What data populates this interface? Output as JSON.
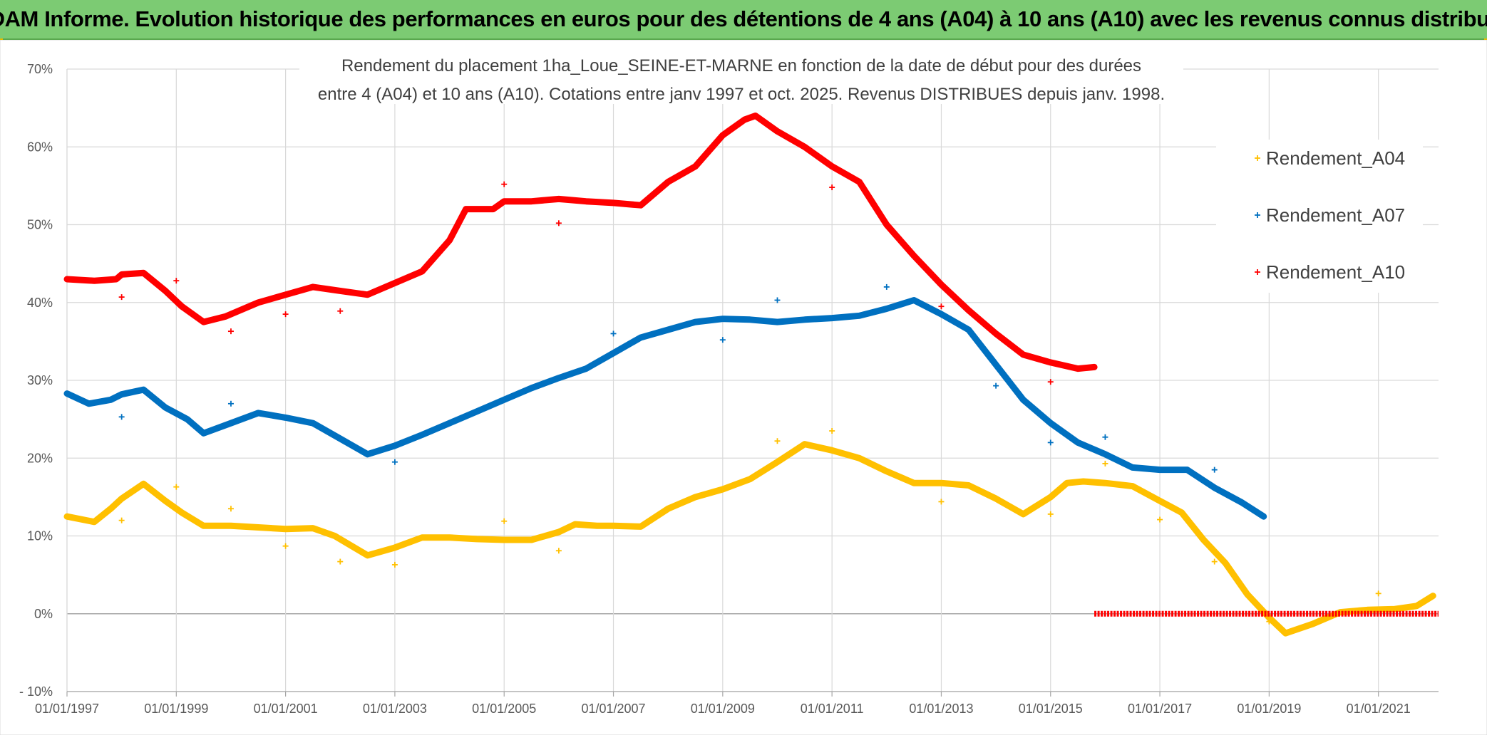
{
  "header": {
    "title": "ADAM Informe. Evolution historique des performances en euros pour des détentions de 4 ans (A04) à 10 ans (A10) avec les revenus connus distribués"
  },
  "chart_data": {
    "type": "line",
    "title_line1": "Rendement du placement 1ha_Loue_SEINE-ET-MARNE en fonction de la date de début pour des durées",
    "title_line2": "entre 4 (A04) et 10 ans (A10). Cotations entre janv 1997 et oct. 2025. Revenus DISTRIBUES depuis janv. 1998.",
    "x_range": [
      1997.0,
      2022.1
    ],
    "ylim": [
      -10,
      70
    ],
    "y_ticks": [
      "70%",
      "60%",
      "50%",
      "40%",
      "30%",
      "20%",
      "10%",
      "0%",
      "- 10%"
    ],
    "y_tick_values": [
      70,
      60,
      50,
      40,
      30,
      20,
      10,
      0,
      -10
    ],
    "x_ticks": [
      "01/01/1997",
      "01/01/1999",
      "01/01/2001",
      "01/01/2003",
      "01/01/2005",
      "01/01/2007",
      "01/01/2009",
      "01/01/2011",
      "01/01/2013",
      "01/01/2015",
      "01/01/2017",
      "01/01/2019",
      "01/01/2021"
    ],
    "x_tick_values": [
      1997,
      1999,
      2001,
      2003,
      2005,
      2007,
      2009,
      2011,
      2013,
      2015,
      2017,
      2019,
      2021
    ],
    "legend_position": "right",
    "series": [
      {
        "name": "Rendement_A04",
        "color": "#ffc000",
        "points": [
          [
            1997.0,
            12.5
          ],
          [
            1997.5,
            11.8
          ],
          [
            1997.8,
            13.5
          ],
          [
            1998.0,
            14.8
          ],
          [
            1998.4,
            16.7
          ],
          [
            1998.8,
            14.5
          ],
          [
            1999.1,
            13.0
          ],
          [
            1999.5,
            11.3
          ],
          [
            2000.0,
            11.3
          ],
          [
            2000.5,
            11.1
          ],
          [
            2001.0,
            10.9
          ],
          [
            2001.5,
            11.0
          ],
          [
            2001.9,
            10.0
          ],
          [
            2002.5,
            7.5
          ],
          [
            2003.0,
            8.5
          ],
          [
            2003.5,
            9.8
          ],
          [
            2004.0,
            9.8
          ],
          [
            2004.5,
            9.6
          ],
          [
            2005.0,
            9.5
          ],
          [
            2005.5,
            9.5
          ],
          [
            2006.0,
            10.5
          ],
          [
            2006.3,
            11.5
          ],
          [
            2006.7,
            11.3
          ],
          [
            2007.0,
            11.3
          ],
          [
            2007.5,
            11.2
          ],
          [
            2008.0,
            13.5
          ],
          [
            2008.5,
            15.0
          ],
          [
            2009.0,
            16.0
          ],
          [
            2009.5,
            17.3
          ],
          [
            2010.0,
            19.5
          ],
          [
            2010.5,
            21.8
          ],
          [
            2011.0,
            21.0
          ],
          [
            2011.5,
            20.0
          ],
          [
            2012.0,
            18.3
          ],
          [
            2012.5,
            16.8
          ],
          [
            2013.0,
            16.8
          ],
          [
            2013.5,
            16.5
          ],
          [
            2014.0,
            14.8
          ],
          [
            2014.5,
            12.8
          ],
          [
            2015.0,
            15.0
          ],
          [
            2015.3,
            16.8
          ],
          [
            2015.6,
            17.0
          ],
          [
            2016.0,
            16.8
          ],
          [
            2016.5,
            16.4
          ],
          [
            2017.0,
            14.5
          ],
          [
            2017.4,
            13.0
          ],
          [
            2017.8,
            9.5
          ],
          [
            2018.2,
            6.5
          ],
          [
            2018.6,
            2.5
          ],
          [
            2019.0,
            -0.5
          ],
          [
            2019.3,
            -2.5
          ],
          [
            2019.8,
            -1.3
          ],
          [
            2020.3,
            0.2
          ],
          [
            2020.8,
            0.5
          ],
          [
            2021.3,
            0.6
          ],
          [
            2021.7,
            1.0
          ],
          [
            2022.0,
            2.3
          ]
        ],
        "outliers": [
          [
            1998.0,
            12.0
          ],
          [
            1999.0,
            16.3
          ],
          [
            2000.0,
            13.5
          ],
          [
            2001.0,
            8.7
          ],
          [
            2002.0,
            6.7
          ],
          [
            2003.0,
            6.3
          ],
          [
            2005.0,
            11.9
          ],
          [
            2006.0,
            8.1
          ],
          [
            2010.0,
            22.2
          ],
          [
            2011.0,
            23.5
          ],
          [
            2013.0,
            14.4
          ],
          [
            2015.0,
            12.8
          ],
          [
            2016.0,
            19.3
          ],
          [
            2017.0,
            12.1
          ],
          [
            2018.0,
            6.7
          ],
          [
            2019.0,
            -1.0
          ],
          [
            2021.0,
            2.6
          ]
        ]
      },
      {
        "name": "Rendement_A07",
        "color": "#0070c0",
        "points": [
          [
            1997.0,
            28.3
          ],
          [
            1997.4,
            27.0
          ],
          [
            1997.8,
            27.5
          ],
          [
            1998.0,
            28.2
          ],
          [
            1998.4,
            28.8
          ],
          [
            1998.8,
            26.5
          ],
          [
            1999.2,
            25.0
          ],
          [
            1999.5,
            23.2
          ],
          [
            2000.0,
            24.5
          ],
          [
            2000.5,
            25.8
          ],
          [
            2001.0,
            25.2
          ],
          [
            2001.5,
            24.5
          ],
          [
            2002.0,
            22.5
          ],
          [
            2002.5,
            20.5
          ],
          [
            2003.0,
            21.6
          ],
          [
            2003.5,
            23.0
          ],
          [
            2004.0,
            24.5
          ],
          [
            2004.5,
            26.0
          ],
          [
            2005.0,
            27.5
          ],
          [
            2005.5,
            29.0
          ],
          [
            2006.0,
            30.3
          ],
          [
            2006.5,
            31.5
          ],
          [
            2007.0,
            33.5
          ],
          [
            2007.5,
            35.5
          ],
          [
            2008.0,
            36.5
          ],
          [
            2008.5,
            37.5
          ],
          [
            2009.0,
            37.9
          ],
          [
            2009.5,
            37.8
          ],
          [
            2010.0,
            37.5
          ],
          [
            2010.5,
            37.8
          ],
          [
            2011.0,
            38.0
          ],
          [
            2011.5,
            38.3
          ],
          [
            2012.0,
            39.2
          ],
          [
            2012.5,
            40.3
          ],
          [
            2013.0,
            38.5
          ],
          [
            2013.5,
            36.5
          ],
          [
            2014.0,
            32.0
          ],
          [
            2014.5,
            27.5
          ],
          [
            2015.0,
            24.5
          ],
          [
            2015.5,
            22.0
          ],
          [
            2016.0,
            20.5
          ],
          [
            2016.5,
            18.8
          ],
          [
            2017.0,
            18.5
          ],
          [
            2017.5,
            18.5
          ],
          [
            2018.0,
            16.2
          ],
          [
            2018.5,
            14.3
          ],
          [
            2018.9,
            12.5
          ]
        ],
        "outliers": [
          [
            1998.0,
            25.3
          ],
          [
            2000.0,
            27.0
          ],
          [
            2003.0,
            19.5
          ],
          [
            2007.0,
            36.0
          ],
          [
            2009.0,
            35.2
          ],
          [
            2010.0,
            40.3
          ],
          [
            2012.0,
            42.0
          ],
          [
            2014.0,
            29.3
          ],
          [
            2015.0,
            22.0
          ],
          [
            2016.0,
            22.7
          ],
          [
            2018.0,
            18.5
          ]
        ]
      },
      {
        "name": "Rendement_A10",
        "color": "#ff0000",
        "points": [
          [
            1997.0,
            43.0
          ],
          [
            1997.5,
            42.8
          ],
          [
            1997.9,
            43.0
          ],
          [
            1998.0,
            43.6
          ],
          [
            1998.4,
            43.8
          ],
          [
            1998.8,
            41.5
          ],
          [
            1999.1,
            39.5
          ],
          [
            1999.5,
            37.5
          ],
          [
            1999.9,
            38.2
          ],
          [
            2000.5,
            40.0
          ],
          [
            2001.0,
            41.0
          ],
          [
            2001.5,
            42.0
          ],
          [
            2002.0,
            41.5
          ],
          [
            2002.5,
            41.0
          ],
          [
            2003.0,
            42.5
          ],
          [
            2003.5,
            44.0
          ],
          [
            2004.0,
            48.0
          ],
          [
            2004.3,
            52.0
          ],
          [
            2004.8,
            52.0
          ],
          [
            2005.0,
            53.0
          ],
          [
            2005.5,
            53.0
          ],
          [
            2006.0,
            53.3
          ],
          [
            2006.5,
            53.0
          ],
          [
            2007.0,
            52.8
          ],
          [
            2007.5,
            52.5
          ],
          [
            2008.0,
            55.5
          ],
          [
            2008.5,
            57.5
          ],
          [
            2009.0,
            61.5
          ],
          [
            2009.4,
            63.5
          ],
          [
            2009.6,
            64.0
          ],
          [
            2010.0,
            62.0
          ],
          [
            2010.5,
            60.0
          ],
          [
            2011.0,
            57.5
          ],
          [
            2011.5,
            55.5
          ],
          [
            2012.0,
            50.0
          ],
          [
            2012.5,
            46.0
          ],
          [
            2013.0,
            42.3
          ],
          [
            2013.5,
            39.0
          ],
          [
            2014.0,
            36.0
          ],
          [
            2014.5,
            33.3
          ],
          [
            2015.0,
            32.3
          ],
          [
            2015.5,
            31.5
          ],
          [
            2015.8,
            31.7
          ]
        ],
        "zero_segment": [
          2015.8,
          2022.1
        ],
        "outliers": [
          [
            1998.0,
            40.7
          ],
          [
            1999.0,
            42.8
          ],
          [
            2000.0,
            36.3
          ],
          [
            2001.0,
            38.5
          ],
          [
            2002.0,
            38.9
          ],
          [
            2005.0,
            55.2
          ],
          [
            2006.0,
            50.2
          ],
          [
            2011.0,
            54.8
          ],
          [
            2013.0,
            39.5
          ],
          [
            2015.0,
            29.8
          ]
        ]
      }
    ]
  }
}
